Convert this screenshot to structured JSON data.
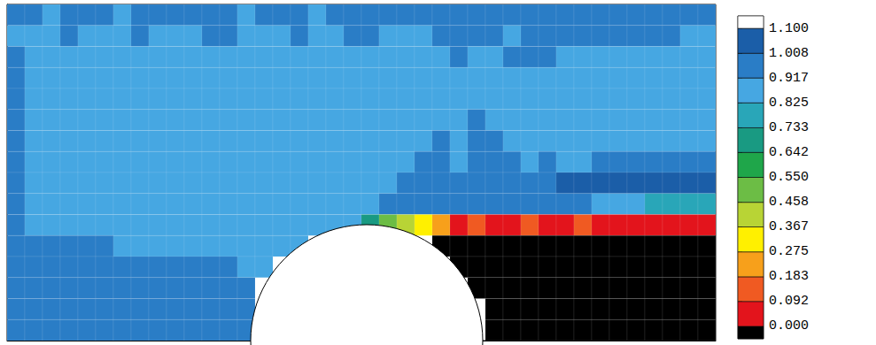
{
  "chart_data": {
    "type": "heatmap",
    "xlim": [
      0,
      40
    ],
    "ylim": [
      0,
      16
    ],
    "tick_labels": false,
    "grid": false,
    "cells": [
      [
        0.96,
        0.96,
        0.9,
        0.96,
        0.96,
        0.96,
        0.9,
        0.96,
        0.96,
        0.96,
        0.96,
        0.96,
        0.96,
        0.9,
        0.96,
        0.96,
        0.96,
        0.9,
        0.96,
        0.96,
        0.96,
        0.96,
        0.96,
        0.96,
        0.96,
        0.96,
        0.96,
        0.96,
        0.96,
        0.96,
        0.96,
        0.96,
        0.96,
        0.96,
        0.96,
        0.96,
        0.96,
        0.96,
        0.96,
        0.96
      ],
      [
        0.9,
        0.9,
        0.9,
        0.96,
        0.9,
        0.9,
        0.9,
        0.96,
        0.9,
        0.9,
        0.9,
        0.96,
        0.96,
        0.9,
        0.9,
        0.9,
        0.96,
        0.9,
        0.9,
        0.96,
        0.96,
        0.9,
        0.9,
        0.9,
        0.96,
        0.96,
        0.96,
        0.96,
        0.9,
        0.96,
        0.96,
        0.96,
        0.96,
        0.96,
        0.96,
        0.96,
        0.96,
        0.96,
        0.9,
        0.9
      ],
      [
        0.96,
        0.9,
        0.9,
        0.9,
        0.9,
        0.9,
        0.9,
        0.9,
        0.9,
        0.9,
        0.9,
        0.9,
        0.9,
        0.9,
        0.9,
        0.9,
        0.9,
        0.9,
        0.9,
        0.9,
        0.9,
        0.9,
        0.9,
        0.9,
        0.9,
        0.96,
        0.9,
        0.9,
        0.96,
        0.96,
        0.96,
        0.9,
        0.9,
        0.9,
        0.9,
        0.9,
        0.9,
        0.9,
        0.9,
        0.9
      ],
      [
        0.96,
        0.9,
        0.9,
        0.9,
        0.9,
        0.9,
        0.9,
        0.9,
        0.9,
        0.9,
        0.9,
        0.9,
        0.9,
        0.9,
        0.9,
        0.9,
        0.9,
        0.9,
        0.9,
        0.9,
        0.9,
        0.9,
        0.9,
        0.9,
        0.9,
        0.9,
        0.9,
        0.9,
        0.9,
        0.9,
        0.9,
        0.9,
        0.9,
        0.9,
        0.9,
        0.9,
        0.9,
        0.9,
        0.9,
        0.9
      ],
      [
        0.96,
        0.9,
        0.9,
        0.9,
        0.9,
        0.9,
        0.9,
        0.9,
        0.9,
        0.9,
        0.9,
        0.9,
        0.9,
        0.9,
        0.9,
        0.9,
        0.9,
        0.9,
        0.9,
        0.9,
        0.9,
        0.9,
        0.9,
        0.9,
        0.9,
        0.9,
        0.9,
        0.9,
        0.9,
        0.9,
        0.9,
        0.9,
        0.9,
        0.9,
        0.9,
        0.9,
        0.9,
        0.9,
        0.9,
        0.9
      ],
      [
        0.96,
        0.9,
        0.9,
        0.9,
        0.9,
        0.9,
        0.9,
        0.9,
        0.9,
        0.9,
        0.9,
        0.9,
        0.9,
        0.9,
        0.9,
        0.9,
        0.9,
        0.9,
        0.9,
        0.9,
        0.9,
        0.9,
        0.9,
        0.9,
        0.9,
        0.9,
        0.96,
        0.9,
        0.9,
        0.9,
        0.9,
        0.9,
        0.9,
        0.9,
        0.9,
        0.9,
        0.9,
        0.9,
        0.9,
        0.9
      ],
      [
        0.96,
        0.9,
        0.9,
        0.9,
        0.9,
        0.9,
        0.9,
        0.9,
        0.9,
        0.9,
        0.9,
        0.9,
        0.9,
        0.9,
        0.9,
        0.9,
        0.9,
        0.9,
        0.9,
        0.9,
        0.9,
        0.9,
        0.9,
        0.9,
        0.96,
        0.9,
        0.96,
        0.96,
        0.9,
        0.9,
        0.9,
        0.9,
        0.9,
        0.9,
        0.9,
        0.9,
        0.9,
        0.9,
        0.9,
        0.9
      ],
      [
        0.96,
        0.9,
        0.9,
        0.9,
        0.9,
        0.9,
        0.9,
        0.9,
        0.9,
        0.9,
        0.9,
        0.9,
        0.9,
        0.9,
        0.9,
        0.9,
        0.9,
        0.9,
        0.9,
        0.9,
        0.9,
        0.9,
        0.9,
        0.96,
        0.96,
        0.9,
        0.96,
        0.96,
        0.96,
        0.9,
        0.96,
        0.9,
        0.9,
        0.96,
        0.96,
        0.96,
        0.96,
        0.96,
        0.96,
        0.96
      ],
      [
        0.96,
        0.9,
        0.9,
        0.9,
        0.9,
        0.9,
        0.9,
        0.9,
        0.9,
        0.9,
        0.9,
        0.9,
        0.9,
        0.9,
        0.9,
        0.9,
        0.9,
        0.9,
        0.9,
        0.9,
        0.9,
        0.9,
        0.96,
        0.96,
        0.96,
        0.96,
        0.96,
        0.96,
        0.96,
        0.96,
        0.96,
        1.02,
        1.02,
        1.02,
        1.02,
        1.02,
        1.02,
        1.02,
        1.02,
        1.02
      ],
      [
        0.96,
        0.9,
        0.9,
        0.9,
        0.9,
        0.9,
        0.9,
        0.9,
        0.9,
        0.9,
        0.9,
        0.9,
        0.9,
        0.9,
        0.9,
        0.9,
        0.9,
        0.9,
        0.9,
        0.9,
        0.9,
        0.96,
        0.96,
        0.96,
        0.96,
        0.96,
        0.96,
        0.96,
        0.96,
        0.96,
        0.96,
        0.96,
        0.96,
        0.85,
        0.85,
        0.85,
        0.78,
        0.78,
        0.78,
        0.78
      ],
      [
        0.96,
        0.9,
        0.9,
        0.9,
        0.9,
        0.9,
        0.9,
        0.9,
        0.9,
        0.9,
        0.9,
        0.9,
        0.9,
        0.9,
        0.9,
        0.9,
        0.9,
        0.9,
        0.9,
        0.9,
        0.7,
        0.5,
        0.4,
        0.3,
        0.2,
        0.05,
        0.15,
        0.05,
        0.05,
        0.15,
        0.05,
        0.05,
        0.15,
        0.05,
        0.05,
        0.05,
        0.05,
        0.05,
        0.05,
        0.05
      ],
      [
        0.96,
        0.96,
        0.96,
        0.96,
        0.96,
        0.96,
        0.9,
        0.9,
        0.9,
        0.9,
        0.9,
        0.9,
        0.9,
        0.9,
        0.9,
        0.9,
        0.9,
        null,
        null,
        null,
        null,
        null,
        null,
        null,
        -0.05,
        -0.05,
        -0.05,
        -0.05,
        -0.05,
        -0.05,
        -0.05,
        -0.05,
        -0.05,
        -0.05,
        -0.05,
        -0.05,
        -0.05,
        -0.05,
        -0.05,
        -0.05
      ],
      [
        0.96,
        0.96,
        0.96,
        0.96,
        0.96,
        0.96,
        0.96,
        0.96,
        0.96,
        0.96,
        0.96,
        0.96,
        0.96,
        0.9,
        0.9,
        null,
        null,
        null,
        null,
        null,
        null,
        null,
        null,
        null,
        null,
        -0.05,
        -0.05,
        -0.05,
        -0.05,
        -0.05,
        -0.05,
        -0.05,
        -0.05,
        -0.05,
        -0.05,
        -0.05,
        -0.05,
        -0.05,
        -0.05,
        -0.05
      ],
      [
        0.96,
        0.96,
        0.96,
        0.96,
        0.96,
        0.96,
        0.96,
        0.96,
        0.96,
        0.96,
        0.96,
        0.96,
        0.96,
        0.96,
        null,
        null,
        null,
        null,
        null,
        null,
        null,
        null,
        null,
        null,
        null,
        null,
        -0.05,
        -0.05,
        -0.05,
        -0.05,
        -0.05,
        -0.05,
        -0.05,
        -0.05,
        -0.05,
        -0.05,
        -0.05,
        -0.05,
        -0.05,
        -0.05
      ],
      [
        0.96,
        0.96,
        0.96,
        0.96,
        0.96,
        0.96,
        0.96,
        0.96,
        0.96,
        0.96,
        0.96,
        0.96,
        0.96,
        0.96,
        null,
        null,
        null,
        null,
        null,
        null,
        null,
        null,
        null,
        null,
        null,
        null,
        null,
        -0.05,
        -0.05,
        -0.05,
        -0.05,
        -0.05,
        -0.05,
        -0.05,
        -0.05,
        -0.05,
        -0.05,
        -0.05,
        -0.05,
        -0.05
      ],
      [
        0.96,
        0.96,
        0.96,
        0.96,
        0.96,
        0.96,
        0.96,
        0.96,
        0.96,
        0.96,
        0.96,
        0.96,
        0.96,
        0.96,
        null,
        null,
        null,
        null,
        null,
        null,
        null,
        null,
        null,
        null,
        null,
        null,
        null,
        -0.05,
        -0.05,
        -0.05,
        -0.05,
        -0.05,
        -0.05,
        -0.05,
        -0.05,
        -0.05,
        -0.05,
        -0.05,
        -0.05,
        -0.05
      ]
    ],
    "colorbar": {
      "range": [
        -0.046,
        1.146
      ],
      "ticks": [
        {
          "value": 0,
          "label": "0.000"
        },
        {
          "value": 0.092,
          "label": "0.092"
        },
        {
          "value": 0.183,
          "label": "0.183"
        },
        {
          "value": 0.275,
          "label": "0.275"
        },
        {
          "value": 0.367,
          "label": "0.367"
        },
        {
          "value": 0.458,
          "label": "0.458"
        },
        {
          "value": 0.55,
          "label": "0.550"
        },
        {
          "value": 0.642,
          "label": "0.642"
        },
        {
          "value": 0.733,
          "label": "0.733"
        },
        {
          "value": 0.825,
          "label": "0.825"
        },
        {
          "value": 0.917,
          "label": "0.917"
        },
        {
          "value": 1.008,
          "label": "1.008"
        },
        {
          "value": 1.1,
          "label": "1.100"
        }
      ]
    }
  }
}
